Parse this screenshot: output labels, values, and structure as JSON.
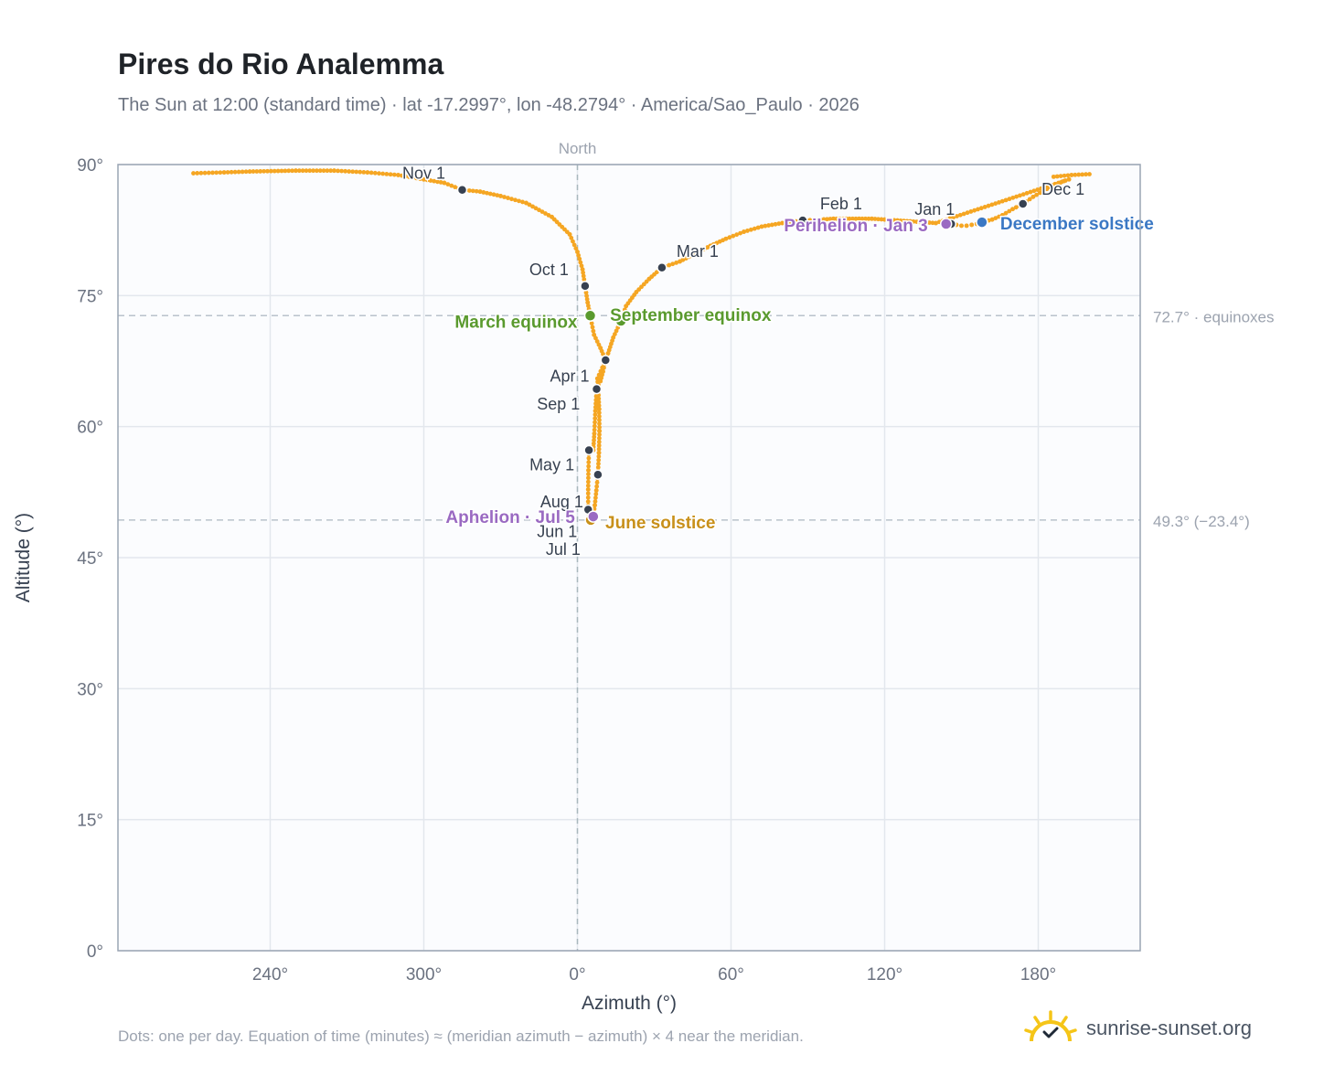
{
  "header": {
    "title": "Pires do Rio Analemma",
    "subtitle": "The Sun at 12:00 (standard time) · lat -17.2997°, lon -48.2794° · America/Sao_Paulo · 2026"
  },
  "footer": {
    "note": "Dots: one per day. Equation of time (minutes) ≈ (meridian azimuth − azimuth) × 4 near the meridian.",
    "brand": "sunrise-sunset.org"
  },
  "colors": {
    "curve": "#f5a623",
    "month_marker": "#374151",
    "equinox": "#5a9a2e",
    "june_solstice": "#c8901a",
    "december_solstice": "#3b78c4",
    "apsis": "#9a6ac2"
  },
  "chart_data": {
    "type": "scatter",
    "xlabel": "Azimuth (°)",
    "ylabel": "Altitude (°)",
    "ylim": [
      0,
      90
    ],
    "y_ticks": [
      "0°",
      "15°",
      "30°",
      "45°",
      "60°",
      "75°",
      "90°"
    ],
    "x_ticks": [
      {
        "azimuth": 240,
        "label": "240°"
      },
      {
        "azimuth": 300,
        "label": "300°"
      },
      {
        "azimuth": 0,
        "label": "0°"
      },
      {
        "azimuth": 60,
        "label": "60°"
      },
      {
        "azimuth": 120,
        "label": "120°"
      },
      {
        "azimuth": 180,
        "label": "180°"
      }
    ],
    "north_line": {
      "azimuth": 0,
      "label": "North"
    },
    "reference_lines": [
      {
        "altitude": 72.7,
        "label": "72.7° · equinoxes"
      },
      {
        "altitude": 49.3,
        "label": "49.3° (−23.4°)"
      }
    ],
    "grid": true,
    "month_markers": [
      {
        "label": "Jan 1",
        "azimuth": 146,
        "altitude": 83.2
      },
      {
        "label": "Feb 1",
        "azimuth": 88,
        "altitude": 83.6
      },
      {
        "label": "Mar 1",
        "azimuth": 33,
        "altitude": 78.2
      },
      {
        "label": "Apr 1",
        "azimuth": 7.5,
        "altitude": 64.3
      },
      {
        "label": "May 1",
        "azimuth": 4.5,
        "altitude": 57.3
      },
      {
        "label": "Jun 1",
        "azimuth": 4.2,
        "altitude": 50.5
      },
      {
        "label": "Jul 1",
        "azimuth": 5.5,
        "altitude": 49.5
      },
      {
        "label": "Aug 1",
        "azimuth": 8,
        "altitude": 54.5
      },
      {
        "label": "Sep 1",
        "azimuth": 11,
        "altitude": 67.6
      },
      {
        "label": "Oct 1",
        "azimuth": 3,
        "altitude": 76.1
      },
      {
        "label": "Nov 1",
        "azimuth": 315,
        "altitude": 87.1
      },
      {
        "label": "Dec 1",
        "azimuth": 174,
        "altitude": 85.5
      }
    ],
    "events": [
      {
        "label": "March equinox",
        "azimuth": 5,
        "altitude": 72.7,
        "color": "#5a9a2e"
      },
      {
        "label": "September equinox",
        "azimuth": 17,
        "altitude": 72.1,
        "color": "#5a9a2e"
      },
      {
        "label": "June solstice",
        "azimuth": 5.2,
        "altitude": 49.3,
        "color": "#c8901a"
      },
      {
        "label": "December solstice",
        "azimuth": 158,
        "altitude": 83.4,
        "color": "#3b78c4"
      },
      {
        "label": "Perihelion · Jan 3",
        "azimuth": 144,
        "altitude": 83.2,
        "color": "#9a6ac2"
      },
      {
        "label": "Aphelion · Jul 5",
        "azimuth": 6.2,
        "altitude": 49.7,
        "color": "#9a6ac2"
      }
    ],
    "curve_points": [
      [
        144,
        83.2
      ],
      [
        146,
        83.2
      ],
      [
        148,
        83.1
      ],
      [
        150,
        83.0
      ],
      [
        152,
        83.0
      ],
      [
        154,
        83.1
      ],
      [
        156,
        83.2
      ],
      [
        158,
        83.4
      ],
      [
        162,
        83.7
      ],
      [
        166,
        84.2
      ],
      [
        170,
        84.9
      ],
      [
        174,
        85.5
      ],
      [
        178,
        86.3
      ],
      [
        182,
        87.0
      ],
      [
        186,
        87.6
      ],
      [
        190,
        88.1
      ],
      [
        192,
        88.3
      ],
      [
        140,
        83.3
      ],
      [
        135,
        83.4
      ],
      [
        130,
        83.5
      ],
      [
        125,
        83.6
      ],
      [
        120,
        83.7
      ],
      [
        115,
        83.8
      ],
      [
        110,
        83.8
      ],
      [
        105,
        83.8
      ],
      [
        100,
        83.8
      ],
      [
        95,
        83.7
      ],
      [
        88,
        83.6
      ],
      [
        80,
        83.3
      ],
      [
        72,
        82.9
      ],
      [
        65,
        82.3
      ],
      [
        58,
        81.5
      ],
      [
        52,
        80.7
      ],
      [
        46,
        79.8
      ],
      [
        40,
        78.9
      ],
      [
        33,
        78.2
      ],
      [
        28,
        76.9
      ],
      [
        23,
        75.4
      ],
      [
        19,
        73.8
      ],
      [
        17,
        72.1
      ],
      [
        14,
        70.2
      ],
      [
        12,
        68.4
      ],
      [
        11,
        67.6
      ],
      [
        10,
        66.3
      ],
      [
        9,
        65.2
      ],
      [
        7.5,
        64.3
      ],
      [
        7,
        61.8
      ],
      [
        6.6,
        59.2
      ],
      [
        6.2,
        57.3
      ],
      [
        4.5,
        57.3
      ],
      [
        4.3,
        55.0
      ],
      [
        4.2,
        52.8
      ],
      [
        4.2,
        50.5
      ],
      [
        4.5,
        49.6
      ],
      [
        5.2,
        49.3
      ],
      [
        5.5,
        49.5
      ],
      [
        6.2,
        49.7
      ],
      [
        6.8,
        51.0
      ],
      [
        7.4,
        52.7
      ],
      [
        8,
        54.5
      ],
      [
        8.4,
        57.0
      ],
      [
        8.6,
        59.5
      ],
      [
        8.5,
        62.0
      ],
      [
        8.2,
        64.0
      ],
      [
        7.8,
        65.5
      ],
      [
        11,
        67.6
      ],
      [
        9,
        69.0
      ],
      [
        6.5,
        70.5
      ],
      [
        5,
        72.7
      ],
      [
        4,
        74.2
      ],
      [
        3,
        76.1
      ],
      [
        2,
        78.0
      ],
      [
        0,
        80.0
      ],
      [
        357,
        82.0
      ],
      [
        350,
        84.0
      ],
      [
        340,
        85.6
      ],
      [
        330,
        86.4
      ],
      [
        322,
        86.9
      ],
      [
        315,
        87.1
      ],
      [
        308,
        87.9
      ],
      [
        300,
        88.3
      ],
      [
        290,
        88.8
      ],
      [
        278,
        89.1
      ],
      [
        265,
        89.3
      ],
      [
        250,
        89.3
      ],
      [
        232,
        89.2
      ],
      [
        222,
        89.1
      ],
      [
        210,
        89.0
      ],
      [
        200,
        88.9
      ],
      [
        193,
        88.8
      ],
      [
        186,
        88.6
      ]
    ]
  }
}
